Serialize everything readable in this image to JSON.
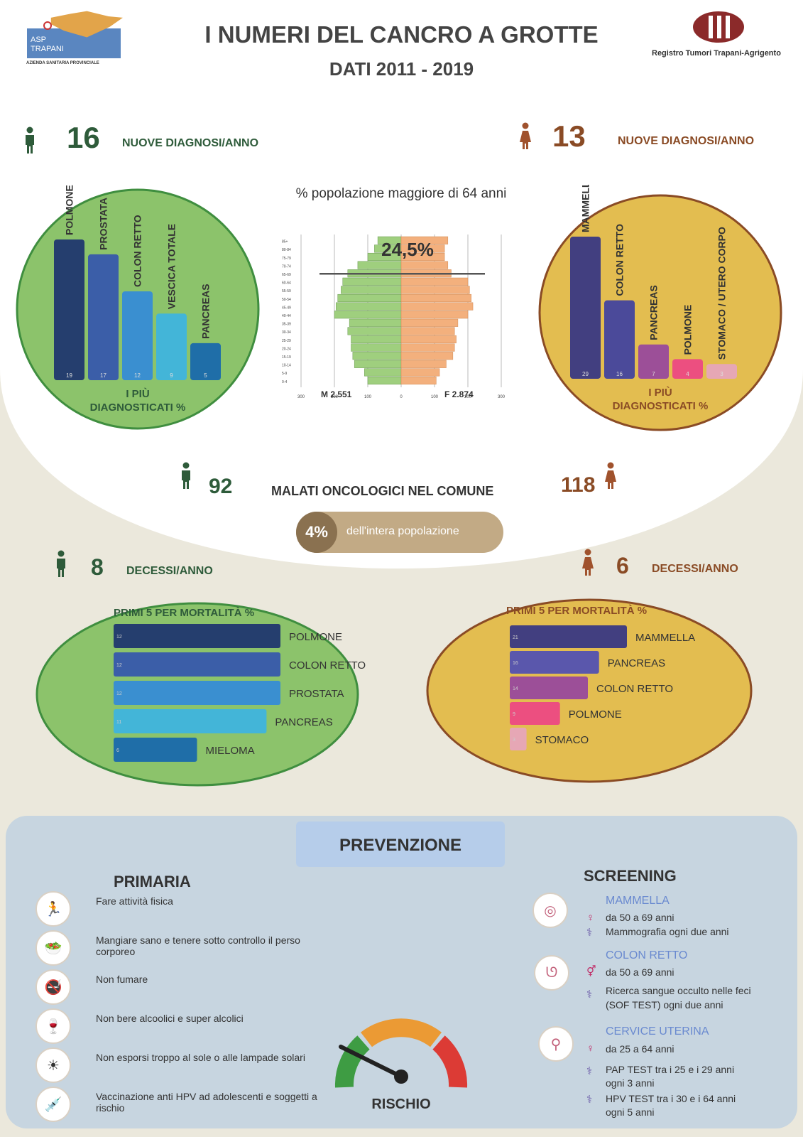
{
  "header": {
    "title": "I NUMERI DEL CANCRO A GROTTE",
    "subtitle": "DATI 2011 - 2019",
    "logo_left_text": "ASP TRAPANI",
    "logo_left_caption": "AZIENDA SANITARIA PROVINCIALE",
    "logo_right_caption": "Registro Tumori Trapani-Agrigento"
  },
  "colors": {
    "male_green": "#8cc36b",
    "female_gold": "#e3bd50",
    "male_dark": "#2e5b3a",
    "female_dark": "#8a4b25"
  },
  "diagnoses": {
    "male_count": "16",
    "male_label": "NUOVE DIAGNOSI/ANNO",
    "female_count": "13",
    "female_label": "NUOVE DIAGNOSI/ANNO"
  },
  "population": {
    "title": "% popolazione maggiore di 64 anni",
    "percent": "24,5%",
    "male_total": "M 2.551",
    "female_total": "F 2.874"
  },
  "patients": {
    "male_count": "92",
    "label": "MALATI ONCOLOGICI NEL COMUNE",
    "female_count": "118",
    "percent": "4%",
    "percent_label": "dell'intera popolazione"
  },
  "deaths": {
    "male_count": "8",
    "male_label": "DECESSI/ANNO",
    "female_count": "6",
    "female_label": "DECESSI/ANNO"
  },
  "chart_data": [
    {
      "type": "bar",
      "title": "I PIÙ DIAGNOSTICATI %",
      "categories": [
        "POLMONE",
        "PROSTATA",
        "COLON RETTO",
        "VESCICA TOTALE",
        "PANCREAS"
      ],
      "values": [
        19,
        17,
        12,
        9,
        5
      ],
      "colors": [
        "#253e6e",
        "#3b5ea8",
        "#3a8fd0",
        "#43b5d8",
        "#1f6ea8"
      ],
      "ylim": [
        0,
        19
      ]
    },
    {
      "type": "bar",
      "title": "I PIÙ DIAGNOSTICATI %",
      "categories": [
        "MAMMELLA",
        "COLON RETTO",
        "PANCREAS",
        "POLMONE",
        "STOMACO / UTERO CORPO"
      ],
      "values": [
        29,
        16,
        7,
        4,
        3
      ],
      "colors": [
        "#423f80",
        "#4b4a9a",
        "#9c4f98",
        "#ec4f80",
        "#e6a7b5"
      ],
      "ylim": [
        0,
        29
      ]
    },
    {
      "type": "bar",
      "title": "",
      "categories": [
        "85+",
        "80-84",
        "75-79",
        "70-74",
        "65-69",
        "60-64",
        "55-59",
        "50-54",
        "45-49",
        "40-44",
        "35-39",
        "30-34",
        "25-29",
        "20-24",
        "15-19",
        "10-14",
        "5-9",
        "0-4"
      ],
      "series": [
        {
          "name": "M",
          "values": [
            70,
            80,
            100,
            130,
            160,
            175,
            180,
            190,
            195,
            200,
            155,
            160,
            150,
            150,
            145,
            140,
            110,
            100
          ]
        },
        {
          "name": "F",
          "values": [
            140,
            130,
            130,
            140,
            150,
            200,
            205,
            210,
            215,
            200,
            170,
            160,
            165,
            160,
            155,
            135,
            115,
            105
          ]
        }
      ],
      "xlim": [
        -300,
        300
      ],
      "xticks": [
        "300",
        "200",
        "100",
        "0",
        "100",
        "200",
        "300"
      ]
    },
    {
      "type": "bar",
      "title": "PRIMI 5 PER MORTALITÀ %",
      "categories": [
        "POLMONE",
        "COLON RETTO",
        "PROSTATA",
        "PANCREAS",
        "MIELOMA"
      ],
      "values": [
        12,
        12,
        12,
        11,
        6
      ],
      "colors": [
        "#253e6e",
        "#3b5ea8",
        "#3a8fd0",
        "#43b5d8",
        "#1f6ea8"
      ],
      "xlim": [
        0,
        12
      ]
    },
    {
      "type": "bar",
      "title": "PRIMI 5 PER MORTALITÀ %",
      "categories": [
        "MAMMELLA",
        "PANCREAS",
        "COLON RETTO",
        "POLMONE",
        "STOMACO"
      ],
      "values": [
        21,
        16,
        14,
        9,
        3
      ],
      "colors": [
        "#423f80",
        "#5a57ac",
        "#9c4f98",
        "#ec4f80",
        "#e6a7b5"
      ],
      "xlim": [
        0,
        21
      ]
    }
  ],
  "prevention": {
    "title": "PREVENZIONE",
    "primary_title": "PRIMARIA",
    "primary_items": [
      {
        "icon": "running-icon",
        "glyph": "🏃",
        "text": "Fare attività fisica"
      },
      {
        "icon": "food-icon",
        "glyph": "🥗",
        "text": "Mangiare sano e tenere sotto controllo il perso corporeo"
      },
      {
        "icon": "no-smoking-icon",
        "glyph": "🚭",
        "text": "Non fumare"
      },
      {
        "icon": "no-alcohol-icon",
        "glyph": "🍷",
        "text": "Non bere alcoolici e super alcolici"
      },
      {
        "icon": "sun-icon",
        "glyph": "☀",
        "text": "Non esporsi troppo al sole o alle lampade solari"
      },
      {
        "icon": "vaccine-icon",
        "glyph": "💉",
        "text": "Vaccinazione anti HPV ad adolescenti e soggetti a rischio"
      }
    ],
    "gauge_label": "RISCHIO",
    "screening_title": "SCREENING",
    "screening": [
      {
        "name": "MAMMELLA",
        "lines": [
          "da 50 a 69 anni",
          "Mammografia ogni due anni"
        ]
      },
      {
        "name": "COLON RETTO",
        "lines": [
          "da 50 a 69 anni",
          "Ricerca sangue occulto nelle feci",
          "(SOF TEST) ogni due anni"
        ]
      },
      {
        "name": "CERVICE UTERINA",
        "lines": [
          "da 25 a 64 anni",
          "PAP TEST tra i 25 e i 29 anni",
          "ogni 3 anni",
          "HPV TEST tra i 30 e i 64 anni",
          "ogni 5 anni"
        ]
      }
    ]
  }
}
